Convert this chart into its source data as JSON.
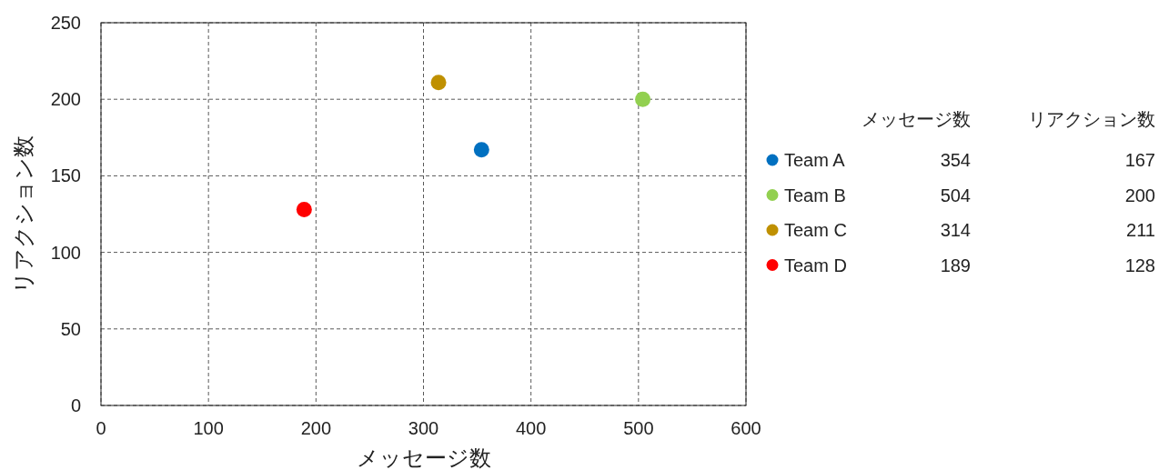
{
  "chart_data": {
    "type": "scatter",
    "xlabel": "メッセージ数",
    "ylabel": "リアクション数",
    "xlim": [
      0,
      600
    ],
    "xticks": [
      0,
      100,
      200,
      300,
      400,
      500,
      600
    ],
    "ylim": [
      0,
      250
    ],
    "yticks": [
      0,
      50,
      100,
      150,
      200,
      250
    ],
    "grid": true,
    "marker": "circle",
    "legend": "right",
    "annotations": [
      "354",
      "167",
      "504",
      "200",
      "314",
      "211",
      "189",
      "128"
    ],
    "series": [
      {
        "name": "Team A",
        "color": "#0070c0",
        "x": [
          354
        ],
        "values": [
          167
        ]
      },
      {
        "name": "Team B",
        "color": "#92d050",
        "x": [
          504
        ],
        "values": [
          200
        ]
      },
      {
        "name": "Team C",
        "color": "#bf9000",
        "x": [
          314
        ],
        "values": [
          211
        ]
      },
      {
        "name": "Team D",
        "color": "#ff0000",
        "x": [
          189
        ],
        "values": [
          128
        ]
      }
    ]
  }
}
